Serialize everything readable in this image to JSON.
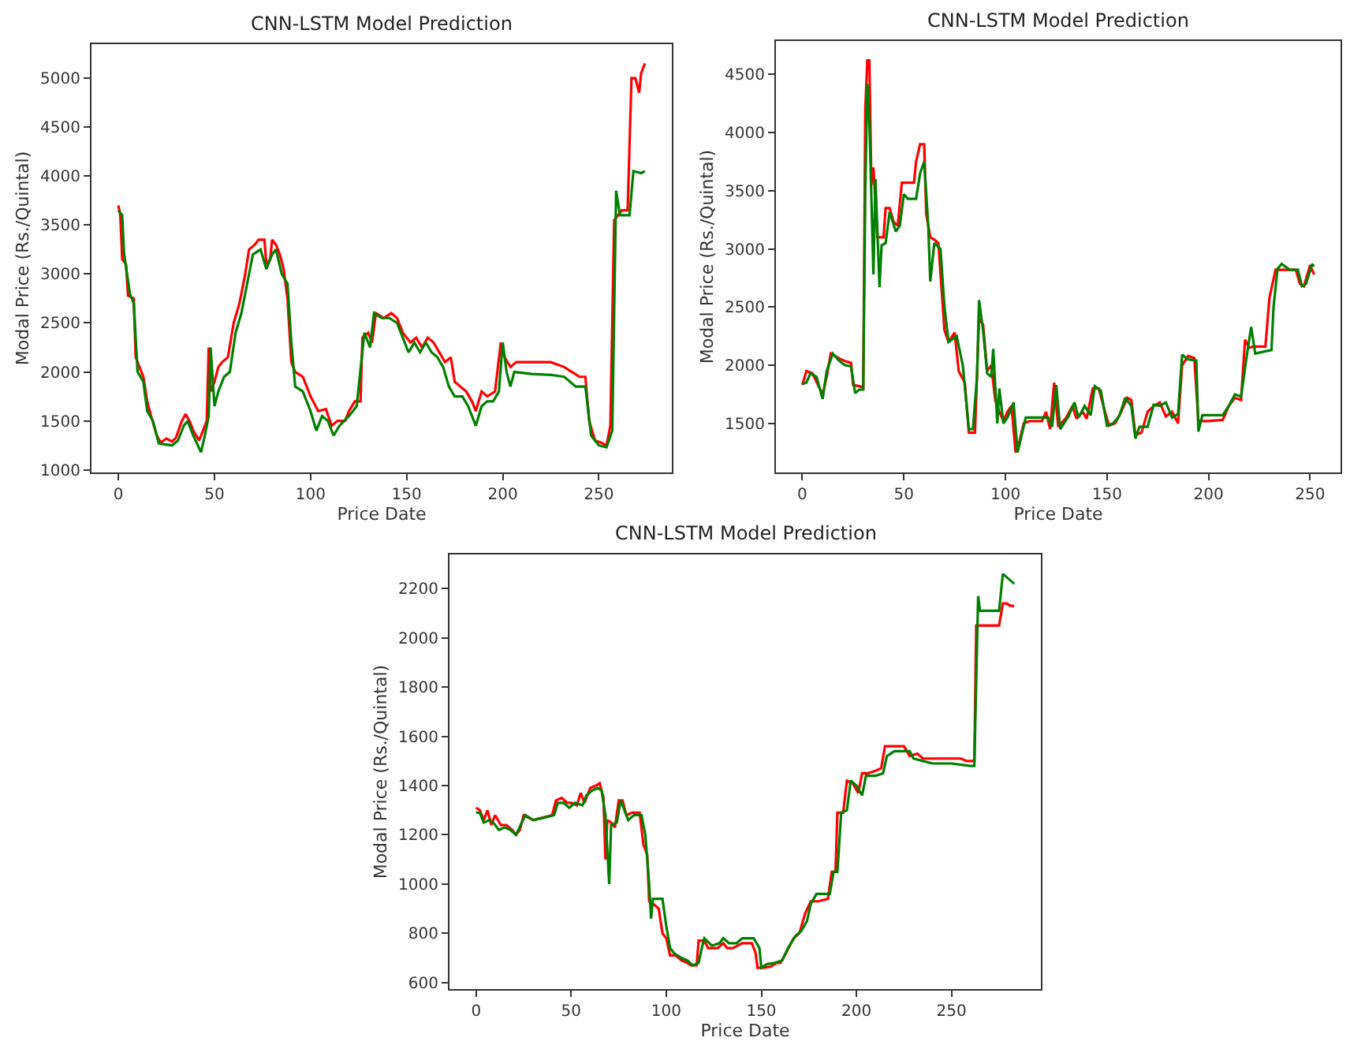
{
  "chart_data": [
    {
      "type": "line",
      "title": "CNN-LSTM Model Prediction",
      "xlabel": "Price Date",
      "ylabel": "Modal Price (Rs./Quintal)",
      "xlim": [
        -14,
        288
      ],
      "ylim": [
        970,
        5350
      ],
      "xticks": [
        0,
        50,
        100,
        150,
        200,
        250
      ],
      "yticks": [
        1000,
        1500,
        2000,
        2500,
        3000,
        3500,
        4000,
        4500,
        5000
      ],
      "series": [
        {
          "color": "#ff0000",
          "x": [
            0,
            1,
            2,
            4,
            5,
            8,
            9,
            11,
            13,
            15,
            17,
            20,
            22,
            25,
            28,
            30,
            33,
            35,
            37,
            39,
            42,
            44,
            46,
            47,
            48,
            50,
            52,
            54,
            57,
            60,
            63,
            66,
            68,
            71,
            73,
            76,
            77,
            79,
            80,
            82,
            84,
            86,
            88,
            90,
            92,
            96,
            100,
            104,
            108,
            111,
            114,
            118,
            120,
            123,
            126,
            127,
            130,
            132,
            134,
            138,
            142,
            145,
            148,
            152,
            155,
            158,
            161,
            164,
            167,
            170,
            173,
            175,
            178,
            181,
            184,
            186,
            189,
            192,
            196,
            199,
            201,
            204,
            207,
            215,
            225,
            232,
            236,
            240,
            243,
            245,
            248,
            251,
            254,
            256,
            258,
            262,
            265,
            267,
            269,
            271,
            272,
            274
          ],
          "values": [
            3700,
            3600,
            3150,
            3100,
            2780,
            2750,
            2150,
            2050,
            1950,
            1700,
            1550,
            1350,
            1280,
            1320,
            1290,
            1330,
            1500,
            1570,
            1500,
            1400,
            1300,
            1400,
            1500,
            2250,
            1800,
            1900,
            2050,
            2100,
            2150,
            2500,
            2700,
            3000,
            3250,
            3300,
            3350,
            3350,
            3100,
            3150,
            3350,
            3300,
            3200,
            3050,
            2750,
            2100,
            2000,
            1950,
            1750,
            1600,
            1620,
            1450,
            1500,
            1500,
            1600,
            1700,
            1700,
            2350,
            2400,
            2300,
            2600,
            2550,
            2600,
            2550,
            2400,
            2300,
            2350,
            2250,
            2350,
            2300,
            2200,
            2100,
            2150,
            1900,
            1850,
            1800,
            1700,
            1600,
            1800,
            1750,
            1800,
            2300,
            2150,
            2050,
            2100,
            2100,
            2100,
            2050,
            2000,
            1950,
            1950,
            1500,
            1300,
            1280,
            1250,
            1450,
            3550,
            3650,
            3650,
            5000,
            5000,
            4850,
            5050,
            5150
          ]
        },
        {
          "color": "#008000",
          "x": [
            0,
            2,
            3,
            6,
            8,
            10,
            13,
            15,
            18,
            21,
            24,
            28,
            31,
            34,
            36,
            39,
            43,
            45,
            47,
            48,
            50,
            52,
            55,
            58,
            61,
            64,
            67,
            70,
            74,
            77,
            80,
            82,
            85,
            88,
            90,
            92,
            96,
            100,
            103,
            106,
            109,
            112,
            115,
            120,
            124,
            128,
            131,
            133,
            137,
            141,
            145,
            148,
            151,
            154,
            157,
            160,
            163,
            166,
            169,
            172,
            175,
            179,
            182,
            186,
            189,
            192,
            195,
            198,
            200,
            202,
            204,
            206,
            215,
            225,
            232,
            238,
            243,
            246,
            250,
            254,
            257,
            259,
            261,
            266,
            268,
            272,
            274
          ],
          "values": [
            3650,
            3600,
            3200,
            2800,
            2700,
            2000,
            1900,
            1600,
            1500,
            1270,
            1260,
            1250,
            1300,
            1450,
            1500,
            1350,
            1180,
            1350,
            1550,
            2250,
            1650,
            1800,
            1950,
            2000,
            2400,
            2600,
            2900,
            3200,
            3250,
            3050,
            3200,
            3250,
            3000,
            2900,
            2300,
            1850,
            1800,
            1600,
            1400,
            1550,
            1500,
            1350,
            1450,
            1550,
            1650,
            2400,
            2250,
            2600,
            2550,
            2550,
            2500,
            2350,
            2200,
            2300,
            2200,
            2300,
            2200,
            2150,
            2050,
            1850,
            1750,
            1750,
            1650,
            1450,
            1650,
            1700,
            1700,
            1800,
            2300,
            2000,
            1850,
            2000,
            1980,
            1970,
            1950,
            1850,
            1850,
            1350,
            1250,
            1230,
            1400,
            3850,
            3600,
            3600,
            4050,
            4030,
            4050
          ]
        }
      ]
    },
    {
      "type": "line",
      "title": "CNN-LSTM Model Prediction",
      "xlabel": "Price Date",
      "ylabel": "Modal Price (Rs./Quintal)",
      "xlim": [
        -13,
        265
      ],
      "ylim": [
        1075,
        4790
      ],
      "xticks": [
        0,
        50,
        100,
        150,
        200,
        250
      ],
      "yticks": [
        1500,
        2000,
        2500,
        3000,
        3500,
        4000,
        4500
      ],
      "series": [
        {
          "color": "#ff0000",
          "x": [
            0,
            2,
            5,
            8,
            10,
            12,
            14,
            16,
            19,
            22,
            24,
            25,
            28,
            30,
            31,
            32,
            33,
            34,
            35,
            37,
            40,
            41,
            43,
            45,
            47,
            49,
            55,
            56,
            58,
            60,
            61,
            63,
            65,
            67,
            70,
            72,
            75,
            77,
            80,
            82,
            85,
            87,
            89,
            91,
            93,
            95,
            97,
            99,
            101,
            103,
            105,
            107,
            109,
            112,
            118,
            120,
            122,
            124,
            126,
            130,
            133,
            135,
            138,
            140,
            143,
            146,
            149,
            151,
            154,
            157,
            160,
            162,
            164,
            167,
            170,
            173,
            176,
            179,
            182,
            185,
            187,
            190,
            193,
            195,
            200,
            207,
            210,
            213,
            216,
            218,
            220,
            222,
            228,
            230,
            233,
            240,
            243,
            245,
            247,
            250,
            252
          ],
          "values": [
            1830,
            1950,
            1930,
            1820,
            1750,
            1900,
            2100,
            2080,
            2050,
            2030,
            2020,
            1830,
            1820,
            1810,
            4200,
            4620,
            4620,
            3550,
            3700,
            3100,
            3100,
            3350,
            3350,
            3230,
            3200,
            3570,
            3570,
            3750,
            3900,
            3900,
            3300,
            3100,
            3080,
            3050,
            2300,
            2200,
            2280,
            1950,
            1850,
            1420,
            1420,
            2400,
            2350,
            1950,
            2000,
            1700,
            1600,
            1520,
            1600,
            1650,
            1250,
            1350,
            1500,
            1520,
            1520,
            1600,
            1450,
            1850,
            1470,
            1550,
            1650,
            1540,
            1600,
            1540,
            1800,
            1800,
            1600,
            1480,
            1500,
            1600,
            1720,
            1700,
            1400,
            1420,
            1600,
            1650,
            1680,
            1560,
            1600,
            1500,
            2000,
            2080,
            2060,
            1520,
            1520,
            1530,
            1650,
            1720,
            1700,
            2220,
            2150,
            2160,
            2160,
            2580,
            2820,
            2820,
            2820,
            2700,
            2680,
            2860,
            2780
          ]
        },
        {
          "color": "#008000",
          "x": [
            0,
            2,
            4,
            7,
            10,
            12,
            15,
            18,
            21,
            24,
            26,
            28,
            30,
            31,
            32,
            33,
            35,
            36,
            38,
            39,
            41,
            43,
            46,
            48,
            50,
            52,
            56,
            58,
            60,
            62,
            63,
            65,
            68,
            70,
            72,
            76,
            79,
            82,
            84,
            86,
            87,
            89,
            91,
            93,
            94,
            96,
            97,
            99,
            101,
            104,
            106,
            108,
            110,
            116,
            121,
            123,
            125,
            127,
            131,
            134,
            136,
            139,
            142,
            144,
            147,
            150,
            153,
            156,
            159,
            162,
            164,
            166,
            170,
            173,
            176,
            179,
            182,
            185,
            187,
            190,
            194,
            195,
            197,
            207,
            210,
            213,
            216,
            219,
            221,
            223,
            228,
            231,
            232,
            234,
            236,
            240,
            244,
            246,
            248,
            251,
            252
          ],
          "values": [
            1840,
            1850,
            1930,
            1900,
            1710,
            1950,
            2100,
            2040,
            2000,
            1990,
            1760,
            1790,
            1790,
            3500,
            4420,
            4100,
            2780,
            3600,
            2670,
            3030,
            3050,
            3320,
            3150,
            3200,
            3470,
            3430,
            3430,
            3650,
            3750,
            3200,
            2720,
            3050,
            3000,
            2500,
            2200,
            2250,
            2000,
            1450,
            1450,
            1900,
            2560,
            2300,
            1930,
            1900,
            2140,
            1500,
            1800,
            1500,
            1550,
            1680,
            1250,
            1400,
            1550,
            1550,
            1550,
            1470,
            1830,
            1450,
            1560,
            1680,
            1550,
            1650,
            1570,
            1820,
            1780,
            1480,
            1500,
            1560,
            1720,
            1650,
            1370,
            1470,
            1470,
            1660,
            1650,
            1680,
            1550,
            1580,
            2090,
            2050,
            2040,
            1430,
            1570,
            1570,
            1650,
            1750,
            1730,
            2100,
            2330,
            2100,
            2120,
            2130,
            2500,
            2830,
            2870,
            2820,
            2820,
            2680,
            2700,
            2870,
            2850
          ]
        }
      ]
    },
    {
      "type": "line",
      "title": "CNN-LSTM Model Prediction",
      "xlabel": "Price Date",
      "ylabel": "Modal Price (Rs./Quintal)",
      "xlim": [
        -14,
        297
      ],
      "ylim": [
        572,
        2340
      ],
      "xticks": [
        0,
        50,
        100,
        150,
        200,
        250
      ],
      "yticks": [
        600,
        800,
        1000,
        1200,
        1400,
        1600,
        1800,
        2000,
        2200
      ],
      "series": [
        {
          "color": "#ff0000",
          "x": [
            0,
            2,
            4,
            6,
            8,
            10,
            13,
            16,
            19,
            21,
            23,
            25,
            30,
            35,
            40,
            42,
            45,
            48,
            50,
            53,
            55,
            57,
            60,
            63,
            65,
            67,
            68,
            69,
            71,
            73,
            75,
            77,
            79,
            82,
            86,
            88,
            90,
            91,
            93,
            96,
            98,
            100,
            102,
            105,
            108,
            111,
            113,
            116,
            117,
            120,
            122,
            127,
            130,
            132,
            135,
            140,
            145,
            147,
            148,
            151,
            155,
            158,
            160,
            163,
            167,
            170,
            173,
            176,
            180,
            185,
            187,
            189,
            190,
            193,
            195,
            198,
            201,
            203,
            206,
            210,
            213,
            215,
            220,
            225,
            228,
            232,
            235,
            245,
            255,
            258,
            262,
            263,
            268,
            275,
            277,
            279,
            281,
            283
          ],
          "values": [
            1310,
            1300,
            1260,
            1300,
            1240,
            1280,
            1240,
            1240,
            1220,
            1200,
            1220,
            1280,
            1260,
            1270,
            1280,
            1340,
            1350,
            1330,
            1330,
            1320,
            1370,
            1330,
            1390,
            1400,
            1410,
            1350,
            1100,
            1260,
            1250,
            1230,
            1340,
            1340,
            1280,
            1290,
            1290,
            1160,
            1120,
            930,
            920,
            900,
            800,
            780,
            710,
            710,
            690,
            680,
            670,
            670,
            770,
            770,
            740,
            740,
            760,
            740,
            740,
            760,
            760,
            720,
            660,
            660,
            665,
            680,
            680,
            720,
            780,
            800,
            880,
            930,
            930,
            940,
            1050,
            1050,
            1290,
            1290,
            1420,
            1410,
            1370,
            1450,
            1450,
            1460,
            1470,
            1560,
            1560,
            1560,
            1520,
            1530,
            1510,
            1510,
            1510,
            1500,
            1500,
            2050,
            2050,
            2050,
            2140,
            2140,
            2130,
            2130
          ]
        },
        {
          "color": "#008000",
          "x": [
            0,
            2,
            4,
            7,
            9,
            12,
            15,
            18,
            21,
            24,
            26,
            30,
            36,
            41,
            43,
            46,
            49,
            52,
            56,
            58,
            61,
            64,
            66,
            68,
            70,
            71,
            74,
            76,
            78,
            80,
            83,
            87,
            89,
            91,
            92,
            93,
            98,
            100,
            102,
            104,
            108,
            111,
            114,
            117,
            119,
            120,
            124,
            128,
            130,
            133,
            137,
            140,
            146,
            149,
            150,
            153,
            157,
            161,
            164,
            168,
            171,
            174,
            176,
            179,
            186,
            188,
            190,
            192,
            195,
            197,
            200,
            203,
            205,
            210,
            214,
            216,
            220,
            228,
            230,
            235,
            240,
            250,
            260,
            262,
            264,
            265,
            270,
            275,
            277,
            280,
            283
          ],
          "values": [
            1290,
            1290,
            1250,
            1260,
            1250,
            1220,
            1230,
            1220,
            1200,
            1250,
            1280,
            1260,
            1270,
            1280,
            1330,
            1330,
            1310,
            1330,
            1320,
            1360,
            1380,
            1390,
            1380,
            1280,
            1000,
            1240,
            1250,
            1340,
            1300,
            1260,
            1280,
            1280,
            1200,
            1000,
            860,
            940,
            940,
            830,
            740,
            720,
            700,
            690,
            670,
            680,
            750,
            780,
            750,
            760,
            780,
            760,
            760,
            780,
            780,
            740,
            660,
            675,
            680,
            690,
            740,
            790,
            810,
            850,
            920,
            960,
            960,
            1050,
            1050,
            1290,
            1300,
            1420,
            1400,
            1360,
            1440,
            1440,
            1450,
            1520,
            1540,
            1540,
            1510,
            1500,
            1490,
            1490,
            1480,
            1480,
            2170,
            2110,
            2110,
            2110,
            2260,
            2240,
            2220
          ]
        }
      ]
    }
  ]
}
